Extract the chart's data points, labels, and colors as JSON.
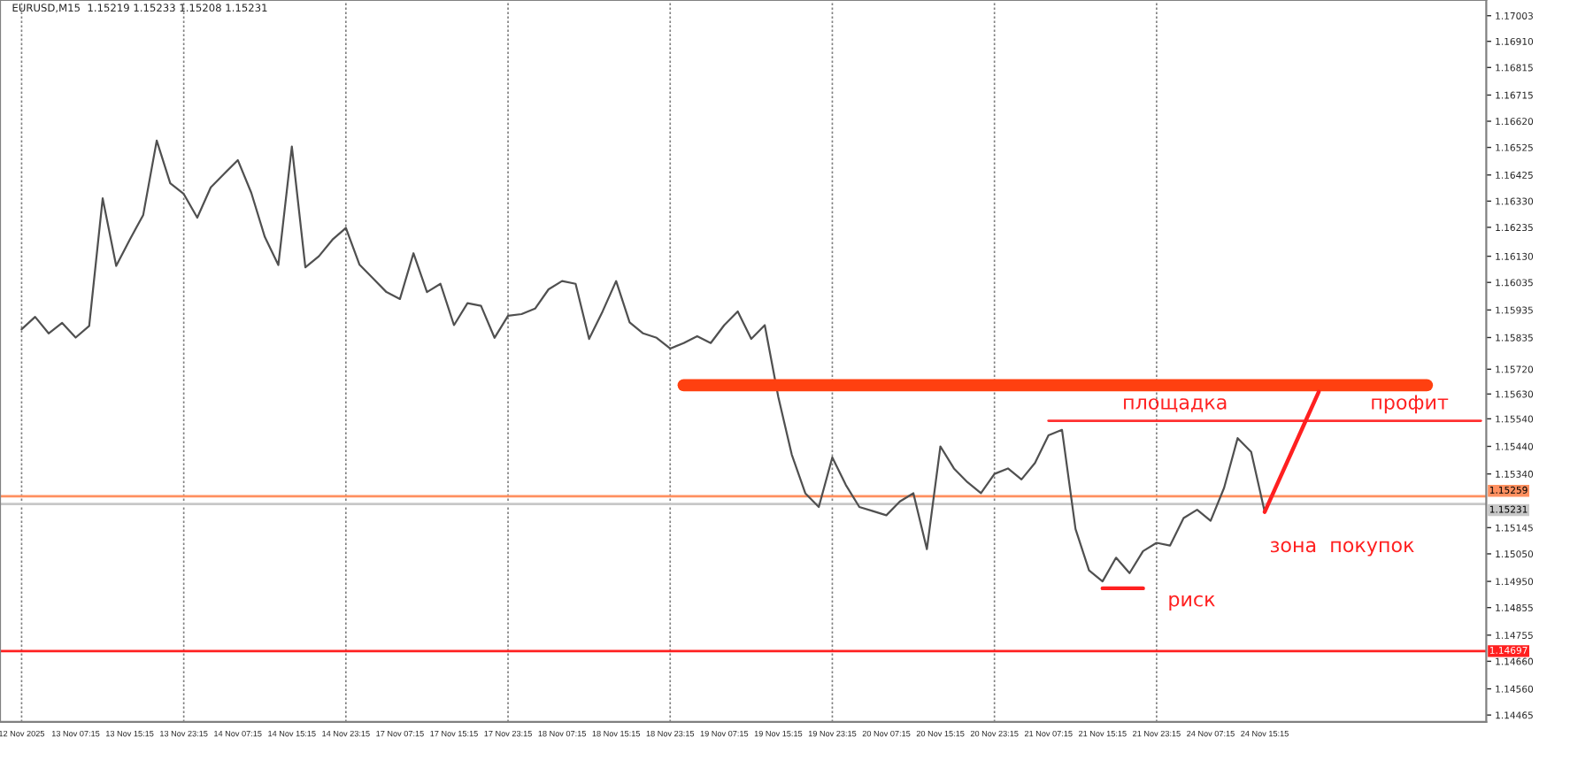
{
  "chart_data": {
    "type": "line",
    "title": "EURUSD,M15  1.15219 1.15233 1.15208 1.15231",
    "categories": [
      "12 Nov 2025",
      null,
      null,
      null,
      "13 Nov 07:15",
      null,
      null,
      null,
      "13 Nov 15:15",
      null,
      null,
      null,
      "13 Nov 23:15",
      null,
      null,
      null,
      "14 Nov 07:15",
      null,
      null,
      null,
      "14 Nov 15:15",
      null,
      null,
      null,
      "14 Nov 23:15",
      null,
      null,
      null,
      "17 Nov 07:15",
      null,
      null,
      null,
      "17 Nov 15:15",
      null,
      null,
      null,
      "17 Nov 23:15",
      null,
      null,
      null,
      "18 Nov 07:15",
      null,
      null,
      null,
      "18 Nov 15:15",
      null,
      null,
      null,
      "18 Nov 23:15",
      null,
      null,
      null,
      "19 Nov 07:15",
      null,
      null,
      null,
      "19 Nov 15:15",
      null,
      null,
      null,
      "19 Nov 23:15",
      null,
      null,
      null,
      "20 Nov 07:15",
      null,
      null,
      null,
      "20 Nov 15:15",
      null,
      null,
      null,
      "20 Nov 23:15",
      null,
      null,
      null,
      "21 Nov 07:15",
      null,
      null,
      null,
      "21 Nov 15:15",
      null,
      null,
      null,
      "21 Nov 23:15",
      null,
      null,
      null,
      "24 Nov 07:15",
      null,
      null,
      null,
      "24 Nov 15:15",
      null,
      null,
      null,
      null,
      null,
      null,
      null,
      null,
      null,
      null,
      null,
      null,
      null,
      null,
      null,
      null
    ],
    "ylim": [
      1.1444,
      1.1706
    ],
    "yticks": [
      {
        "value": 1.17003,
        "label": "1.17003"
      },
      {
        "value": 1.1691,
        "label": "1.16910"
      },
      {
        "value": 1.16815,
        "label": "1.16815"
      },
      {
        "value": 1.16715,
        "label": "1.16715"
      },
      {
        "value": 1.1662,
        "label": "1.16620"
      },
      {
        "value": 1.16525,
        "label": "1.16525"
      },
      {
        "value": 1.16425,
        "label": "1.16425"
      },
      {
        "value": 1.1633,
        "label": "1.16330"
      },
      {
        "value": 1.16235,
        "label": "1.16235"
      },
      {
        "value": 1.1613,
        "label": "1.16130"
      },
      {
        "value": 1.16035,
        "label": "1.16035"
      },
      {
        "value": 1.15935,
        "label": "1.15935"
      },
      {
        "value": 1.15835,
        "label": "1.15835"
      },
      {
        "value": 1.1572,
        "label": "1.15720"
      },
      {
        "value": 1.1563,
        "label": "1.15630"
      },
      {
        "value": 1.1554,
        "label": "1.15540"
      },
      {
        "value": 1.1544,
        "label": "1.15440"
      },
      {
        "value": 1.1534,
        "label": "1.15340"
      },
      {
        "value": 1.15145,
        "label": "1.15145"
      },
      {
        "value": 1.1505,
        "label": "1.15050"
      },
      {
        "value": 1.1495,
        "label": "1.14950"
      },
      {
        "value": 1.14855,
        "label": "1.14855"
      },
      {
        "value": 1.14755,
        "label": "1.14755"
      },
      {
        "value": 1.1466,
        "label": "1.14660"
      },
      {
        "value": 1.1456,
        "label": "1.14560"
      },
      {
        "value": 1.14465,
        "label": "1.14465"
      }
    ],
    "grid": "x",
    "series": [
      {
        "color": "#505050",
        "values": [
          1.15865,
          1.1591,
          1.1585,
          1.15888,
          1.15835,
          1.15877,
          1.1634,
          1.16095,
          1.1619,
          1.1628,
          1.1655,
          1.16395,
          1.16356,
          1.1627,
          1.1638,
          1.1643,
          1.16479,
          1.1636,
          1.162,
          1.16098,
          1.16528,
          1.1609,
          1.1613,
          1.1619,
          1.16233,
          1.161,
          1.1605,
          1.16,
          1.15975,
          1.16141,
          1.16,
          1.1603,
          1.1588,
          1.1596,
          1.1595,
          1.15834,
          1.15914,
          1.1592,
          1.1594,
          1.1601,
          1.1604,
          1.1603,
          1.1583,
          1.1593,
          1.1604,
          1.1589,
          1.1585,
          1.15834,
          1.15795,
          1.15815,
          1.1584,
          1.15815,
          1.1588,
          1.1593,
          1.1583,
          1.1588,
          1.1562,
          1.1541,
          1.1527,
          1.1522,
          1.154,
          1.153,
          1.1522,
          1.15205,
          1.1519,
          1.1524,
          1.1527,
          1.15067,
          1.1544,
          1.1536,
          1.1531,
          1.1527,
          1.1534,
          1.1536,
          1.1532,
          1.1538,
          1.1548,
          1.155,
          1.1514,
          1.1499,
          1.1495,
          1.15036,
          1.1498,
          1.1506,
          1.1509,
          1.1508,
          1.1518,
          1.1521,
          1.1517,
          1.1529,
          1.1547,
          1.1542,
          1.15202,
          null,
          null,
          null,
          null,
          null,
          null,
          null,
          null,
          null,
          null,
          null,
          null,
          null,
          null,
          null,
          null
        ]
      },
      {
        "color": "#ff4010",
        "values": [
          null,
          null,
          null,
          null,
          null,
          null,
          null,
          null,
          null,
          null,
          null,
          null,
          null,
          null,
          null,
          null,
          null,
          null,
          null,
          null,
          null,
          null,
          null,
          null,
          null,
          null,
          null,
          null,
          null,
          null,
          null,
          null,
          null,
          null,
          null,
          null,
          null,
          null,
          null,
          null,
          null,
          null,
          null,
          null,
          null,
          null,
          null,
          null,
          null,
          1.15662,
          1.15662,
          1.15662,
          1.15662,
          1.15662,
          1.15662,
          1.15662,
          1.15662,
          1.15662,
          1.15662,
          1.15662,
          1.15662,
          1.15662,
          1.15662,
          1.15662,
          1.15662,
          1.15662,
          1.15662,
          1.15662,
          1.15662,
          1.15662,
          1.15662,
          1.15662,
          1.15662,
          1.15662,
          1.15662,
          1.15662,
          1.15662,
          1.15662,
          1.15662,
          1.15662,
          1.15662,
          1.15662,
          1.15662,
          1.15662,
          1.15662,
          1.15662,
          1.15662,
          1.15662,
          1.15662,
          1.15662,
          1.15662,
          1.15662,
          1.15662,
          1.15662,
          1.15662,
          1.15662,
          1.15662,
          1.15662,
          1.15662,
          1.15662,
          1.15662,
          1.15662,
          1.15662,
          1.15662,
          1.15662,
          null,
          null,
          null,
          null
        ]
      },
      {
        "color": "#ff3030",
        "values": [
          null,
          null,
          null,
          null,
          null,
          null,
          null,
          null,
          null,
          null,
          null,
          null,
          null,
          null,
          null,
          null,
          null,
          null,
          null,
          null,
          null,
          null,
          null,
          null,
          null,
          null,
          null,
          null,
          null,
          null,
          null,
          null,
          null,
          null,
          null,
          null,
          null,
          null,
          null,
          null,
          null,
          null,
          null,
          null,
          null,
          null,
          null,
          null,
          null,
          null,
          null,
          null,
          null,
          null,
          null,
          null,
          null,
          null,
          null,
          null,
          null,
          null,
          null,
          null,
          null,
          null,
          null,
          null,
          null,
          null,
          null,
          null,
          null,
          null,
          null,
          null,
          1.15533,
          1.15533,
          1.15533,
          1.15533,
          1.15533,
          1.15533,
          1.15533,
          1.15533,
          1.15533,
          1.15533,
          1.15533,
          1.15533,
          1.15533,
          1.15533,
          1.15533,
          1.15533,
          1.15533,
          1.15533,
          1.15533,
          1.15533,
          1.15533,
          1.15533,
          1.15533,
          1.15533,
          1.15533,
          1.15533,
          1.15533,
          1.15533,
          1.15533,
          1.15533,
          1.15533,
          1.15533,
          1.15533
        ]
      },
      {
        "color": "#ff2020",
        "values": [
          null,
          null,
          null,
          null,
          null,
          null,
          null,
          null,
          null,
          null,
          null,
          null,
          null,
          null,
          null,
          null,
          null,
          null,
          null,
          null,
          null,
          null,
          null,
          null,
          null,
          null,
          null,
          null,
          null,
          null,
          null,
          null,
          null,
          null,
          null,
          null,
          null,
          null,
          null,
          null,
          null,
          null,
          null,
          null,
          null,
          null,
          null,
          null,
          null,
          null,
          null,
          null,
          null,
          null,
          null,
          null,
          null,
          null,
          null,
          null,
          null,
          null,
          null,
          null,
          null,
          null,
          null,
          null,
          null,
          null,
          null,
          null,
          null,
          null,
          null,
          null,
          null,
          null,
          null,
          null,
          1.14925,
          1.14925,
          1.14925,
          1.14925,
          null,
          null,
          null,
          null,
          null,
          null,
          null,
          null,
          null,
          null,
          null,
          null,
          null,
          null,
          null,
          null,
          null,
          null,
          null,
          null,
          null,
          null,
          null,
          null,
          null
        ]
      },
      {
        "color": "#ff2020",
        "values": [
          null,
          null,
          null,
          null,
          null,
          null,
          null,
          null,
          null,
          null,
          null,
          null,
          null,
          null,
          null,
          null,
          null,
          null,
          null,
          null,
          null,
          null,
          null,
          null,
          null,
          null,
          null,
          null,
          null,
          null,
          null,
          null,
          null,
          null,
          null,
          null,
          null,
          null,
          null,
          null,
          null,
          null,
          null,
          null,
          null,
          null,
          null,
          null,
          null,
          null,
          null,
          null,
          null,
          null,
          null,
          null,
          null,
          null,
          null,
          null,
          null,
          null,
          null,
          null,
          null,
          null,
          null,
          null,
          null,
          null,
          null,
          null,
          null,
          null,
          null,
          null,
          null,
          null,
          null,
          null,
          null,
          null,
          null,
          null,
          null,
          null,
          null,
          null,
          null,
          null,
          null,
          null,
          1.15202,
          1.15311,
          1.1542,
          1.15529,
          1.15638,
          null,
          null,
          null,
          null,
          null,
          null,
          null,
          null,
          null,
          null,
          null,
          null
        ]
      }
    ],
    "ref_lines": [
      {
        "axis": "y",
        "value": 1.15259,
        "label": "1.15259",
        "color": "#ff9060"
      },
      {
        "axis": "y",
        "value": 1.15231,
        "label": "1.15231",
        "color": "#c8c8c8"
      },
      {
        "axis": "y",
        "value": 1.14697,
        "label": "1.14697",
        "color": "#ff2020"
      }
    ],
    "annotations": [
      "площадка",
      "профит",
      "зона  покупок",
      "риск"
    ]
  }
}
